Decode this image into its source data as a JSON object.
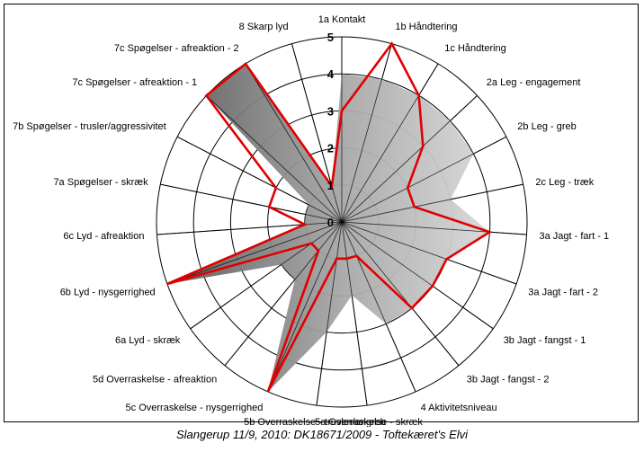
{
  "caption": "Slangerup 11/9, 2010: DK18671/2009 - Toftekæret's Elvi",
  "chart_data": {
    "type": "radar",
    "title": "",
    "categories": [
      "1a Kontakt",
      "1b Håndtering",
      "1c Håndtering",
      "2a Leg - engagement",
      "2b Leg - greb",
      "2c Leg - træk",
      "3a Jagt - fart - 1",
      "3a Jagt - fart - 2",
      "3b Jagt - fangst - 1",
      "3b Jagt - fangst - 2",
      "4 Aktivitetsniveau",
      "5a Overraskelse - skræk",
      "5b Overraskelse - trusler/angreb",
      "5c Overraskelse - nysgerrighed",
      "5d Overraskelse - afreaktion",
      "6a Lyd - skræk",
      "6b Lyd - nysgerrighed",
      "6c Lyd - afreaktion",
      "7a Spøgelser - skræk",
      "7b Spøgelser - trusler/aggressivitet",
      "7c Spøgelser - afreaktion - 1",
      "7c Spøgelser - afreaktion - 2",
      "8 Skarp lyd"
    ],
    "rticks": [
      "0",
      "1",
      "2",
      "3",
      "4",
      "5"
    ],
    "rlim": [
      0,
      5
    ],
    "series": [
      {
        "type": "area",
        "color": "#a0a0a0",
        "values": [
          4,
          4,
          4,
          4,
          4,
          3,
          4,
          3,
          3,
          3,
          3,
          2,
          3,
          5,
          2,
          2,
          5,
          1,
          1,
          1,
          5,
          5,
          1
        ]
      },
      {
        "type": "line",
        "color": "#e00000",
        "values": [
          3,
          5,
          4,
          3,
          2,
          2,
          4,
          3,
          3,
          3,
          1,
          1,
          1,
          5,
          1,
          1,
          5,
          1,
          2,
          2,
          5,
          5,
          1
        ]
      }
    ]
  }
}
